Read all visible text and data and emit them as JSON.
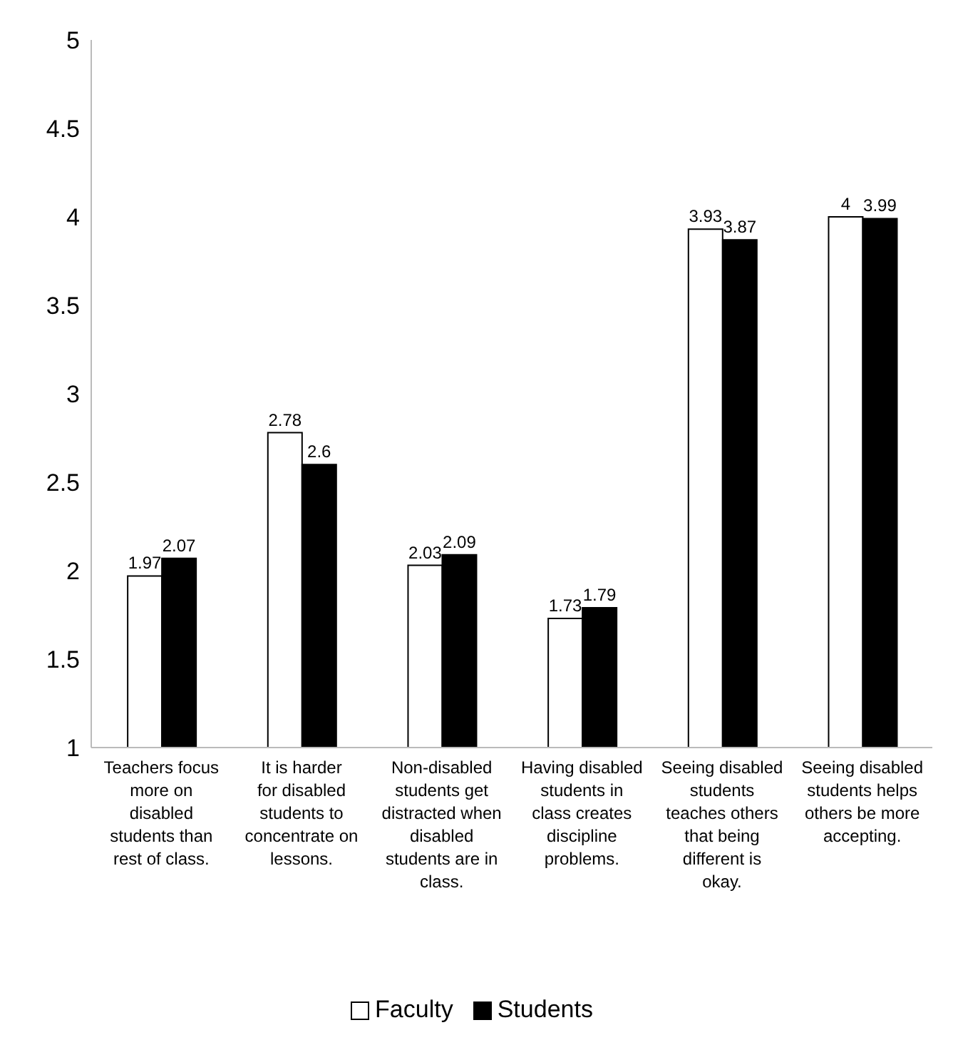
{
  "chart_data": {
    "type": "bar",
    "categories": [
      "Teachers focus more on disabled students than rest of class.",
      "It is harder for disabled students to concentrate on lessons.",
      "Non-disabled students get distracted when disabled students are in class.",
      "Having disabled students in class creates discipline problems.",
      "Seeing disabled students teaches others that being different is okay.",
      "Seeing disabled students helps others be more accepting."
    ],
    "series": [
      {
        "name": "Faculty",
        "color": "#ffffff",
        "values": [
          1.97,
          2.78,
          2.03,
          1.73,
          3.93,
          4
        ]
      },
      {
        "name": "Students",
        "color": "#000000",
        "values": [
          2.07,
          2.6,
          2.09,
          1.79,
          3.87,
          3.99
        ]
      }
    ],
    "ylim": [
      1,
      5
    ],
    "yticks": [
      1,
      1.5,
      2,
      2.5,
      3,
      3.5,
      4,
      4.5,
      5
    ],
    "legend": "bottom",
    "data_labels": true
  }
}
